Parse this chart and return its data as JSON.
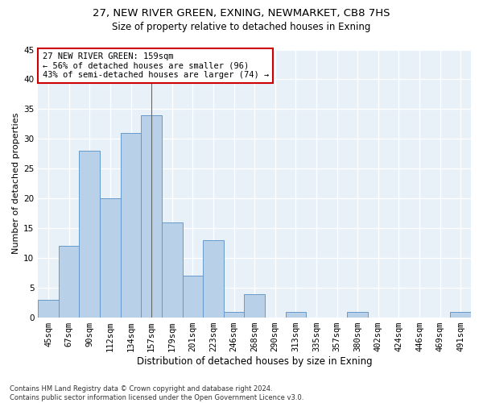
{
  "title1": "27, NEW RIVER GREEN, EXNING, NEWMARKET, CB8 7HS",
  "title2": "Size of property relative to detached houses in Exning",
  "xlabel": "Distribution of detached houses by size in Exning",
  "ylabel": "Number of detached properties",
  "categories": [
    "45sqm",
    "67sqm",
    "90sqm",
    "112sqm",
    "134sqm",
    "157sqm",
    "179sqm",
    "201sqm",
    "223sqm",
    "246sqm",
    "268sqm",
    "290sqm",
    "313sqm",
    "335sqm",
    "357sqm",
    "380sqm",
    "402sqm",
    "424sqm",
    "446sqm",
    "469sqm",
    "491sqm"
  ],
  "values": [
    3,
    12,
    28,
    20,
    31,
    34,
    16,
    7,
    13,
    1,
    4,
    0,
    1,
    0,
    0,
    1,
    0,
    0,
    0,
    0,
    1
  ],
  "bar_color": "#b8d0e8",
  "bar_edge_color": "#6699cc",
  "annotation_text": "27 NEW RIVER GREEN: 159sqm\n← 56% of detached houses are smaller (96)\n43% of semi-detached houses are larger (74) →",
  "annotation_box_color": "#ffffff",
  "annotation_box_edge_color": "#cc0000",
  "ylim": [
    0,
    45
  ],
  "yticks": [
    0,
    5,
    10,
    15,
    20,
    25,
    30,
    35,
    40,
    45
  ],
  "background_color": "#e8f0f8",
  "grid_color": "#ffffff",
  "footer": "Contains HM Land Registry data © Crown copyright and database right 2024.\nContains public sector information licensed under the Open Government Licence v3.0.",
  "title1_fontsize": 9.5,
  "title2_fontsize": 8.5,
  "xlabel_fontsize": 8.5,
  "ylabel_fontsize": 8,
  "tick_fontsize": 7.5,
  "annotation_fontsize": 7.5,
  "footer_fontsize": 6
}
